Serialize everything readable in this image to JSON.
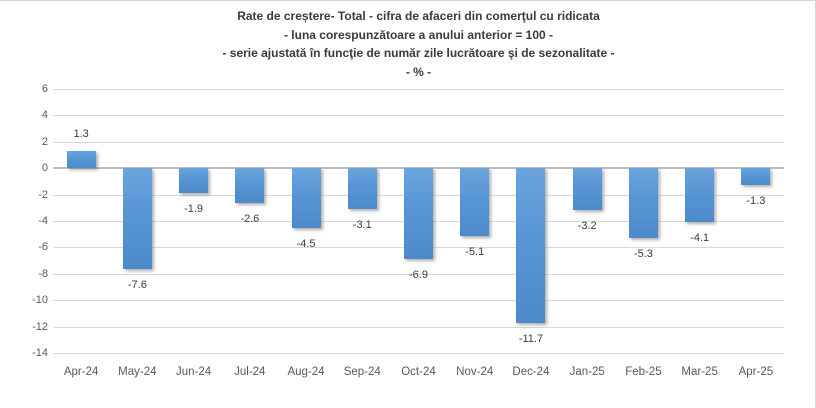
{
  "chart_data": {
    "type": "bar",
    "title": "Rate de creștere- Total - cifra de afaceri din comerţul cu ridicata - luna corespunzătoare a anului anterior = 100 - - serie ajustată în funcţie de număr zile lucrătoare şi de sezonalitate - - % -",
    "title_lines": [
      "Rate de creștere- Total - cifra de afaceri din comerţul cu ridicata",
      "- luna corespunzătoare a anului anterior = 100 -",
      "- serie ajustată în funcţie de număr zile lucrătoare şi de sezonalitate -",
      "- % -"
    ],
    "categories": [
      "Apr-24",
      "May-24",
      "Jun-24",
      "Jul-24",
      "Aug-24",
      "Sep-24",
      "Oct-24",
      "Nov-24",
      "Dec-24",
      "Jan-25",
      "Feb-25",
      "Mar-25",
      "Apr-25"
    ],
    "values": [
      1.3,
      -7.6,
      -1.9,
      -2.6,
      -4.5,
      -3.1,
      -6.9,
      -5.1,
      -11.7,
      -3.2,
      -5.3,
      -4.1,
      -1.3
    ],
    "xlabel": "",
    "ylabel": "",
    "ylim": [
      -14,
      6
    ],
    "yticks": [
      6,
      4,
      2,
      0,
      -2,
      -4,
      -6,
      -8,
      -10,
      -12,
      -14
    ],
    "grid": true,
    "legend": "none",
    "data_labels": "outside-end",
    "colors": {
      "bar_top": "#6ba4de",
      "bar_bottom": "#4c8ac9",
      "gridline": "#d9d9d9",
      "axis_line": "#bdbdbd",
      "tick_label": "#595959",
      "data_label": "#3a3a3a",
      "title": "#3b3b3b",
      "background": "#ffffff"
    }
  }
}
